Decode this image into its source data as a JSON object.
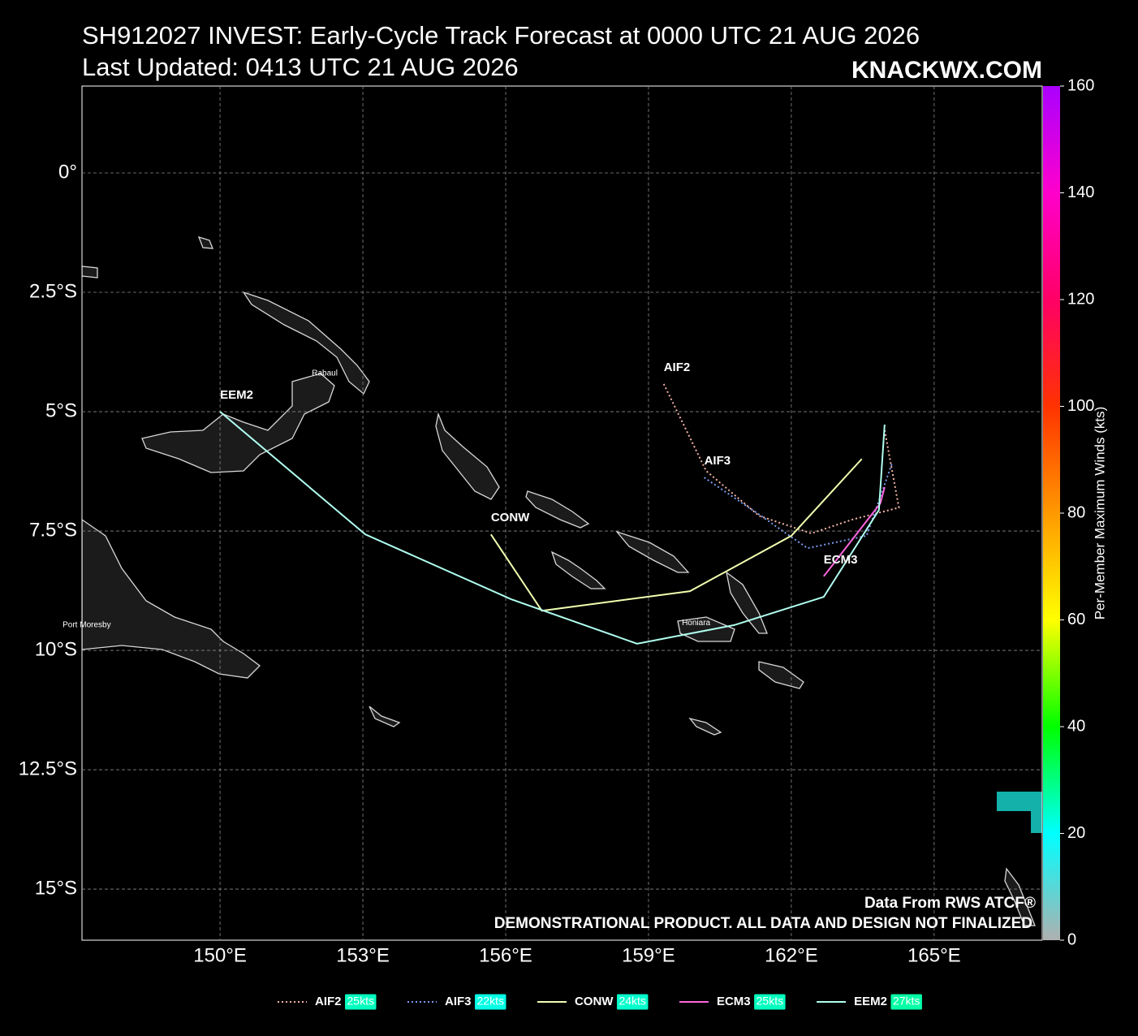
{
  "chart_data": {
    "type": "track-map",
    "title": "SH912027 INVEST: Early-Cycle Track Forecast at 0000 UTC 21 AUG 2026",
    "subtitle": "Last Updated: 0413 UTC 21 AUG 2026",
    "brand": "KNACKWX.COM",
    "source_note": "Data From RWS ATCF®",
    "disclaimer": "DEMONSTRATIONAL PRODUCT. ALL DATA AND DESIGN NOT FINALIZED",
    "xlim": [
      147.1,
      167.27
    ],
    "ylim": [
      -16.07,
      1.82
    ],
    "xticks": [
      {
        "value": 150,
        "label": "150°E"
      },
      {
        "value": 153,
        "label": "153°E"
      },
      {
        "value": 156,
        "label": "156°E"
      },
      {
        "value": 159,
        "label": "159°E"
      },
      {
        "value": 162,
        "label": "162°E"
      },
      {
        "value": 165,
        "label": "165°E"
      }
    ],
    "yticks": [
      {
        "value": 0,
        "label": "0°"
      },
      {
        "value": -2.5,
        "label": "2.5°S"
      },
      {
        "value": -5,
        "label": "5°S"
      },
      {
        "value": -7.5,
        "label": "7.5°S"
      },
      {
        "value": -10,
        "label": "10°S"
      },
      {
        "value": -12.5,
        "label": "12.5°S"
      },
      {
        "value": -15,
        "label": "15°S"
      }
    ],
    "grid": true,
    "places": [
      {
        "name": "Rabaul",
        "lon": 152.2,
        "lat": -4.2
      },
      {
        "name": "Port Moresby",
        "lon": 147.2,
        "lat": -9.47
      },
      {
        "name": "Honiara",
        "lon": 160.0,
        "lat": -9.43
      }
    ],
    "series": [
      {
        "name": "AIF2",
        "color": "#f4b4a6",
        "linestyle": "dotted",
        "max_wind": {
          "value": 25,
          "label": "25kts"
        },
        "x": [
          159.32,
          160.21,
          161.32,
          162.42,
          163.28,
          164.26,
          163.96
        ],
        "values": [
          -4.42,
          -6.24,
          -7.18,
          -7.55,
          -7.26,
          -7.01,
          -5.39
        ]
      },
      {
        "name": "AIF3",
        "color": "#7b9cf0",
        "linestyle": "dotted",
        "max_wind": {
          "value": 22,
          "label": "22kts"
        },
        "x": [
          160.17,
          161.23,
          162.34,
          163.58,
          164.12
        ],
        "values": [
          -6.38,
          -7.09,
          -7.86,
          -7.6,
          -6.07
        ]
      },
      {
        "name": "CONW",
        "color": "#f0ffb0",
        "linestyle": "solid",
        "max_wind": {
          "value": 24,
          "label": "24kts"
        },
        "x": [
          155.69,
          156.76,
          159.87,
          162.0,
          163.48
        ],
        "values": [
          -7.57,
          -9.17,
          -8.76,
          -7.6,
          -5.99
        ]
      },
      {
        "name": "ECM3",
        "color": "#ff66e0",
        "linestyle": "solid",
        "max_wind": {
          "value": 25,
          "label": "25kts"
        },
        "x": [
          162.68,
          163.87,
          163.96
        ],
        "values": [
          -8.45,
          -6.92,
          -6.58
        ]
      },
      {
        "name": "EEM2",
        "color": "#b0fff0",
        "linestyle": "solid",
        "max_wind": {
          "value": 27,
          "label": "27kts"
        },
        "x": [
          150.0,
          153.05,
          156.12,
          158.76,
          160.8,
          162.68,
          163.84,
          163.96
        ],
        "values": [
          -5.0,
          -7.57,
          -8.93,
          -9.86,
          -9.47,
          -8.88,
          -7.06,
          -5.27
        ]
      }
    ],
    "colorbar": {
      "label": "Per-Member Maximum Winds (kts)",
      "clim": [
        0,
        160
      ],
      "ticks": [
        0,
        20,
        40,
        60,
        80,
        100,
        120,
        140,
        160
      ],
      "colors": [
        "#b0b0b0",
        "#00ffff",
        "#00ff00",
        "#ffff00",
        "#ff9900",
        "#ff3300",
        "#ff0066",
        "#ff00cc",
        "#aa00ff"
      ]
    }
  }
}
